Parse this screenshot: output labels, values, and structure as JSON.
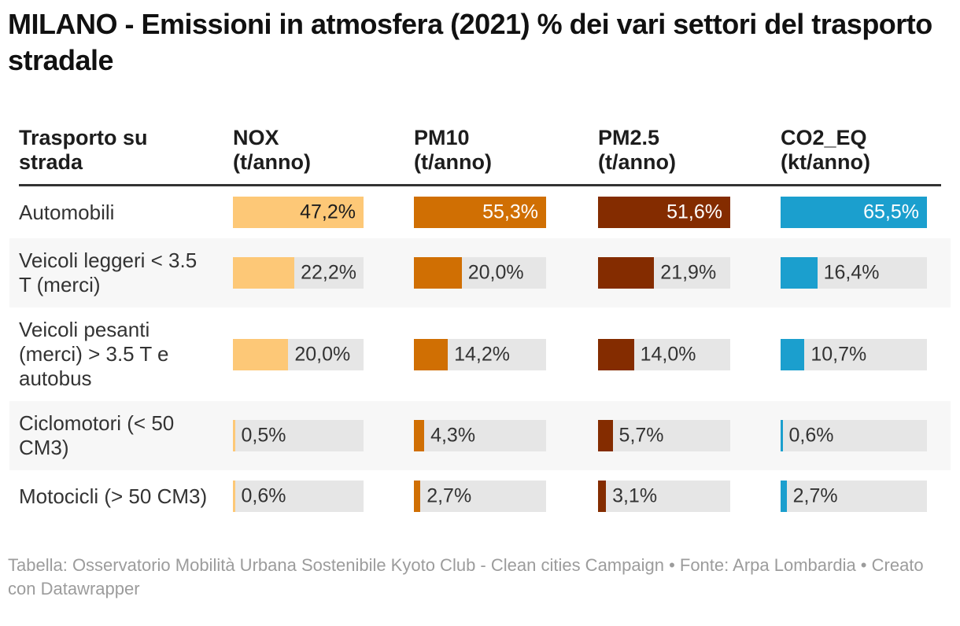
{
  "title": "MILANO - Emissioni in atmosfera (2021) % dei vari settori del trasporto stradale",
  "table": {
    "row_header_label": "Trasporto su\nstrada",
    "columns": [
      {
        "id": "nox",
        "label": "NOX\n(t/anno)",
        "unit": "t/anno",
        "bar_color": "#fdc877",
        "value_on_bar_color": "#1d1d1d",
        "column_max": 47.2,
        "track_width": 166
      },
      {
        "id": "pm10",
        "label": "PM10\n(t/anno)",
        "unit": "t/anno",
        "bar_color": "#d06f03",
        "value_on_bar_color": "#ffffff",
        "column_max": 55.3,
        "track_width": 168
      },
      {
        "id": "pm25",
        "label": "PM2.5\n(t/anno)",
        "unit": "t/anno",
        "bar_color": "#842c00",
        "value_on_bar_color": "#ffffff",
        "column_max": 51.6,
        "track_width": 168
      },
      {
        "id": "co2eq",
        "label": "CO2_EQ\n(kt/anno)",
        "unit": "kt/anno",
        "bar_color": "#1b9fce",
        "value_on_bar_color": "#ffffff",
        "column_max": 65.5,
        "track_width": 186
      }
    ],
    "rows": [
      {
        "label": "Automobili",
        "values": [
          {
            "value": 47.2,
            "display": "47,2%"
          },
          {
            "value": 55.3,
            "display": "55,3%"
          },
          {
            "value": 51.6,
            "display": "51,6%"
          },
          {
            "value": 65.5,
            "display": "65,5%"
          }
        ]
      },
      {
        "label": "Veicoli leggeri < 3.5 T (merci)",
        "values": [
          {
            "value": 22.2,
            "display": "22,2%"
          },
          {
            "value": 20.0,
            "display": "20,0%"
          },
          {
            "value": 21.9,
            "display": "21,9%"
          },
          {
            "value": 16.4,
            "display": "16,4%"
          }
        ]
      },
      {
        "label": "Veicoli pesanti (merci) > 3.5 T e autobus",
        "values": [
          {
            "value": 20.0,
            "display": "20,0%"
          },
          {
            "value": 14.2,
            "display": "14,2%"
          },
          {
            "value": 14.0,
            "display": "14,0%"
          },
          {
            "value": 10.7,
            "display": "10,7%"
          }
        ]
      },
      {
        "label": "Ciclomotori (< 50 CM3)",
        "values": [
          {
            "value": 0.5,
            "display": "0,5%"
          },
          {
            "value": 4.3,
            "display": "4,3%"
          },
          {
            "value": 5.7,
            "display": "5,7%"
          },
          {
            "value": 0.6,
            "display": "0,6%"
          }
        ]
      },
      {
        "label": "Motocicli (> 50 CM3)",
        "values": [
          {
            "value": 0.6,
            "display": "0,6%"
          },
          {
            "value": 2.7,
            "display": "2,7%"
          },
          {
            "value": 3.1,
            "display": "3,1%"
          },
          {
            "value": 2.7,
            "display": "2,7%"
          }
        ]
      }
    ]
  },
  "footer": "Tabella: Osservatorio Mobilità Urbana Sostenibile Kyoto Club - Clean cities Campaign • Fonte: Arpa Lombardia • Creato con Datawrapper",
  "colors": {
    "track": "#e6e6e6",
    "zebra_row": "#f7f7f7",
    "header_rule": "#333333",
    "body_text": "#333333",
    "title_text": "#111111",
    "footer_text": "#9c9c9c",
    "background": "#ffffff"
  },
  "chart_data": {
    "type": "table",
    "title": "MILANO - Emissioni in atmosfera (2021) % dei vari settori del trasporto stradale",
    "row_dimension": "Trasporto su strada",
    "categories": [
      "Automobili",
      "Veicoli leggeri < 3.5 T (merci)",
      "Veicoli pesanti (merci) > 3.5 T e autobus",
      "Ciclomotori (< 50 CM3)",
      "Motocicli (> 50 CM3)"
    ],
    "series": [
      {
        "name": "NOX (t/anno)",
        "values": [
          47.2,
          22.2,
          20.0,
          0.5,
          0.6
        ]
      },
      {
        "name": "PM10 (t/anno)",
        "values": [
          55.3,
          20.0,
          14.2,
          4.3,
          2.7
        ]
      },
      {
        "name": "PM2.5 (t/anno)",
        "values": [
          51.6,
          21.9,
          14.0,
          5.7,
          3.1
        ]
      },
      {
        "name": "CO2_EQ (kt/anno)",
        "values": [
          65.5,
          16.4,
          10.7,
          0.6,
          2.7
        ]
      }
    ],
    "value_unit": "%",
    "bar_scaling": "each column's bars are scaled so the column maximum fills the full track width",
    "source": "Arpa Lombardia",
    "credit": "Osservatorio Mobilità Urbana Sostenibile Kyoto Club - Clean cities Campaign",
    "tool": "Datawrapper"
  }
}
